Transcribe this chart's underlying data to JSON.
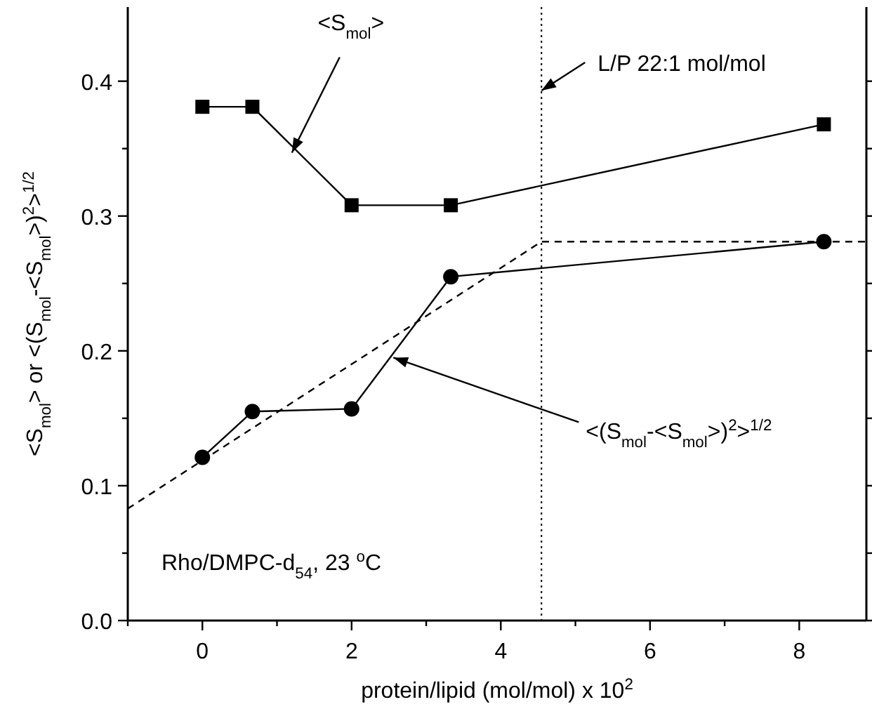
{
  "chart_data": {
    "type": "line",
    "xlabel": "protein/lipid (mol/mol) x 10$^{2}$",
    "ylabel": "<S$_{mol}$> or <(S$_{mol}$-<S$_{mol}$>)$^{2}$>$^{1/2}$",
    "xlim": [
      -1,
      8.9
    ],
    "ylim": [
      0,
      0.455
    ],
    "xticks": [
      {
        "value": -1,
        "label": null
      },
      0,
      {
        "value": 1,
        "label": null
      },
      2,
      {
        "value": 3,
        "label": null
      },
      4,
      {
        "value": 5,
        "label": null
      },
      6,
      {
        "value": 7,
        "label": null
      },
      8
    ],
    "yticks": [
      {
        "value": 0,
        "label": "0.0"
      },
      {
        "value": 0.05,
        "label": null
      },
      0.1,
      {
        "value": 0.15,
        "label": null
      },
      0.2,
      {
        "value": 0.25,
        "label": null
      },
      0.3,
      {
        "value": 0.35,
        "label": null
      },
      0.4
    ],
    "grid": false,
    "series": [
      {
        "color": "#000000",
        "marker": "square",
        "line_style": "solid",
        "x": [
          0,
          0.67,
          2,
          3.33,
          8.33
        ],
        "values": [
          0.381,
          0.381,
          0.308,
          0.308,
          0.368
        ]
      },
      {
        "color": "#000000",
        "marker": "circle",
        "line_style": "solid",
        "x": [
          0,
          0.67,
          2,
          3.33,
          8.33
        ],
        "values": [
          0.121,
          0.155,
          0.157,
          0.255,
          0.281
        ]
      },
      {
        "color": "#000000",
        "marker": "none",
        "line_style": "dashed",
        "x": [
          -1,
          4.545,
          8.9
        ],
        "values": [
          0.083,
          0.281,
          0.281
        ]
      }
    ],
    "ref_lines": [
      {
        "axis": "x",
        "value": 4.545,
        "line_style": "dotted"
      }
    ],
    "annotations": [
      {
        "text": "<S$_{mol}$>",
        "x": 1.2,
        "y": 0.347
      },
      {
        "text": "<(S$_{mol}$-<S$_{mol}$>)$^{2}$>$^{1/2}$",
        "x": 2.56,
        "y": 0.195
      },
      {
        "text": "L/P 22:1 mol/mol",
        "x": 4.545,
        "y": 0.393
      },
      "Rho/DMPC-d$_{54}$, 23 $^{o}$C"
    ]
  }
}
